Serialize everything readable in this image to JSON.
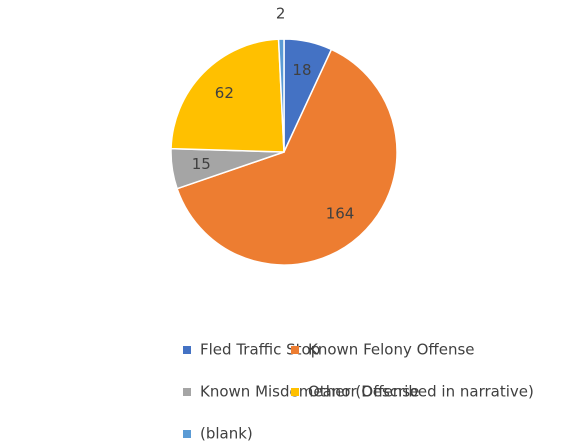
{
  "chart_data": {
    "type": "pie",
    "categories": [
      "Fled Traffic Stop",
      "Known Felony Offense",
      "Known Misdemeanor Offense",
      "Other (Described in narrative)",
      "(blank)"
    ],
    "values": [
      18,
      164,
      15,
      62,
      2
    ],
    "colors": [
      "#4472c4",
      "#ed7d31",
      "#a5a5a5",
      "#ffc000",
      "#5b9bd5"
    ],
    "legend": "bottom"
  }
}
